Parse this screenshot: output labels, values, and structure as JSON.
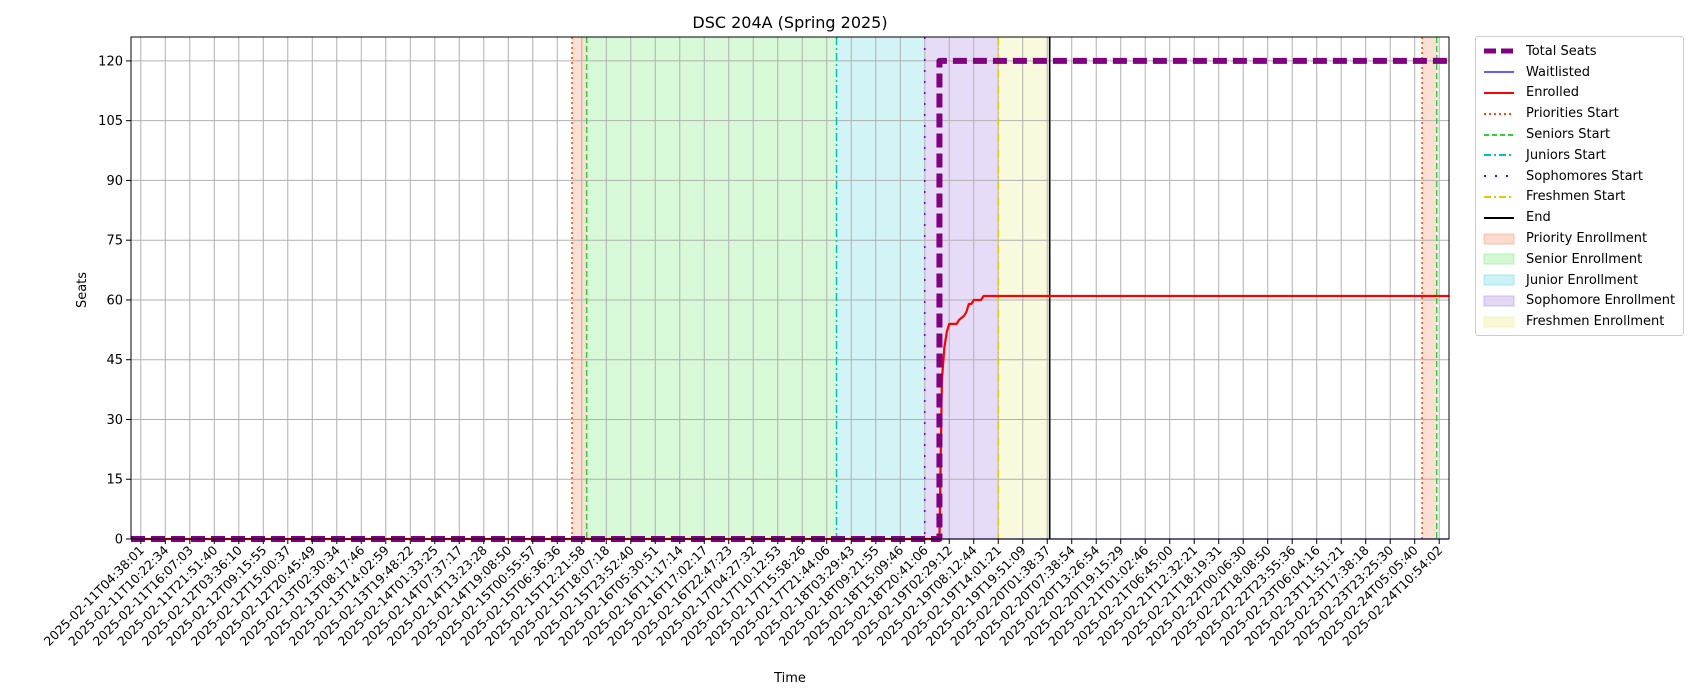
{
  "chart_data": {
    "type": "line",
    "title": "DSC 204A (Spring 2025)",
    "xlabel": "Time",
    "ylabel": "Seats",
    "ylim": [
      0,
      126
    ],
    "yticks": [
      0,
      15,
      30,
      45,
      60,
      75,
      90,
      105,
      120
    ],
    "x_tick_labels": [
      "2025-02-11T04:38:01",
      "2025-02-11T10:22:34",
      "2025-02-11T16:07:03",
      "2025-02-11T21:51:40",
      "2025-02-12T03:36:10",
      "2025-02-12T09:15:55",
      "2025-02-12T15:00:37",
      "2025-02-12T20:45:49",
      "2025-02-13T02:30:34",
      "2025-02-13T08:17:46",
      "2025-02-13T14:02:59",
      "2025-02-13T19:48:22",
      "2025-02-14T01:33:25",
      "2025-02-14T07:37:17",
      "2025-02-14T13:23:28",
      "2025-02-14T19:08:50",
      "2025-02-15T00:55:57",
      "2025-02-15T06:36:36",
      "2025-02-15T12:21:58",
      "2025-02-15T18:07:18",
      "2025-02-15T23:52:40",
      "2025-02-16T05:30:51",
      "2025-02-16T11:17:14",
      "2025-02-16T17:02:17",
      "2025-02-16T22:47:23",
      "2025-02-17T04:27:32",
      "2025-02-17T10:12:53",
      "2025-02-17T15:58:26",
      "2025-02-17T21:44:06",
      "2025-02-18T03:29:43",
      "2025-02-18T09:21:55",
      "2025-02-18T15:09:46",
      "2025-02-18T20:41:06",
      "2025-02-19T02:29:12",
      "2025-02-19T08:12:44",
      "2025-02-19T14:01:21",
      "2025-02-19T19:51:09",
      "2025-02-20T01:38:37",
      "2025-02-20T07:38:54",
      "2025-02-20T13:26:54",
      "2025-02-20T19:15:29",
      "2025-02-21T01:02:46",
      "2025-02-21T06:45:00",
      "2025-02-21T12:32:21",
      "2025-02-21T18:19:31",
      "2025-02-22T00:06:30",
      "2025-02-22T18:08:50",
      "2025-02-22T23:55:36",
      "2025-02-23T06:04:16",
      "2025-02-23T11:51:21",
      "2025-02-23T17:38:18",
      "2025-02-23T23:25:30",
      "2025-02-24T05:05:40",
      "2025-02-24T10:54:02"
    ],
    "x_range_ticks": [
      -0.4,
      53.4
    ],
    "series": [
      {
        "name": "Total Seats",
        "color": "#800080",
        "style": "dashed-thick",
        "points": [
          [
            -0.4,
            0
          ],
          [
            32.6,
            0
          ],
          [
            32.6,
            120
          ],
          [
            53.4,
            120
          ]
        ]
      },
      {
        "name": "Waitlisted",
        "color": "#0000ff",
        "style": "solid-thin",
        "points": [
          [
            -0.4,
            0
          ],
          [
            53.4,
            0
          ]
        ]
      },
      {
        "name": "Enrolled",
        "color": "#ff0000",
        "style": "solid",
        "points": [
          [
            -0.4,
            0
          ],
          [
            32.6,
            0
          ],
          [
            32.7,
            40
          ],
          [
            32.8,
            48
          ],
          [
            32.9,
            52
          ],
          [
            33.0,
            54
          ],
          [
            33.3,
            54
          ],
          [
            33.4,
            55
          ],
          [
            33.6,
            56
          ],
          [
            33.7,
            57
          ],
          [
            33.8,
            59
          ],
          [
            33.9,
            59
          ],
          [
            34.0,
            60
          ],
          [
            34.3,
            60
          ],
          [
            34.4,
            61
          ],
          [
            53.4,
            61
          ]
        ]
      }
    ],
    "markers": [
      {
        "name": "Priorities Start",
        "x": 17.6,
        "color": "#ff4500",
        "style": "dotted"
      },
      {
        "name": "Seniors Start",
        "x": 18.2,
        "color": "#32cd32",
        "style": "dashed"
      },
      {
        "name": "Juniors Start",
        "x": 28.4,
        "color": "#00c0c0",
        "style": "dashdot"
      },
      {
        "name": "Sophomores Start",
        "x": 32.0,
        "color": "#6a00d0",
        "style": "loose"
      },
      {
        "name": "Freshmen Start",
        "x": 35.0,
        "color": "#e6c800",
        "style": "dashdot"
      },
      {
        "name": "End",
        "x": 37.1,
        "color": "#000000",
        "style": "solid"
      },
      {
        "name": "Priorities Start",
        "x": 52.3,
        "color": "#ff4500",
        "style": "dotted"
      },
      {
        "name": "Seniors Start",
        "x": 52.9,
        "color": "#32cd32",
        "style": "dashed"
      }
    ],
    "spans": [
      {
        "name": "Priority Enrollment",
        "x0": 17.6,
        "x1": 18.2,
        "color": "#f4a582"
      },
      {
        "name": "Senior Enrollment",
        "x0": 18.2,
        "x1": 28.4,
        "color": "#90ee90"
      },
      {
        "name": "Junior Enrollment",
        "x0": 28.4,
        "x1": 32.0,
        "color": "#7fdfe8"
      },
      {
        "name": "Sophomore Enrollment",
        "x0": 32.0,
        "x1": 35.0,
        "color": "#b99ae8"
      },
      {
        "name": "Freshmen Enrollment",
        "x0": 35.0,
        "x1": 37.1,
        "color": "#eeeea0"
      },
      {
        "name": "Priority Enrollment",
        "x0": 52.3,
        "x1": 52.9,
        "color": "#f4a582"
      }
    ],
    "grid": true,
    "legend_position": "outside-right-top"
  },
  "legend": [
    {
      "label": "Total Seats",
      "kind": "line",
      "color": "#800080",
      "style": "dashed-thick"
    },
    {
      "label": "Waitlisted",
      "kind": "line",
      "color": "#0000ff",
      "style": "solid-thin"
    },
    {
      "label": "Enrolled",
      "kind": "line",
      "color": "#ff0000",
      "style": "solid"
    },
    {
      "label": "Priorities Start",
      "kind": "line",
      "color": "#ff4500",
      "style": "dotted"
    },
    {
      "label": "Seniors Start",
      "kind": "line",
      "color": "#32cd32",
      "style": "dashed"
    },
    {
      "label": "Juniors Start",
      "kind": "line",
      "color": "#00c0c0",
      "style": "dashdot"
    },
    {
      "label": "Sophomores Start",
      "kind": "line",
      "color": "#6a00d0",
      "style": "loose"
    },
    {
      "label": "Freshmen Start",
      "kind": "line",
      "color": "#e6c800",
      "style": "dashdot"
    },
    {
      "label": "End",
      "kind": "line",
      "color": "#000000",
      "style": "solid"
    },
    {
      "label": "Priority Enrollment",
      "kind": "patch",
      "color": "#f4a582"
    },
    {
      "label": "Senior Enrollment",
      "kind": "patch",
      "color": "#90ee90"
    },
    {
      "label": "Junior Enrollment",
      "kind": "patch",
      "color": "#7fdfe8"
    },
    {
      "label": "Sophomore Enrollment",
      "kind": "patch",
      "color": "#b99ae8"
    },
    {
      "label": "Freshmen Enrollment",
      "kind": "patch",
      "color": "#eeeea0"
    }
  ]
}
